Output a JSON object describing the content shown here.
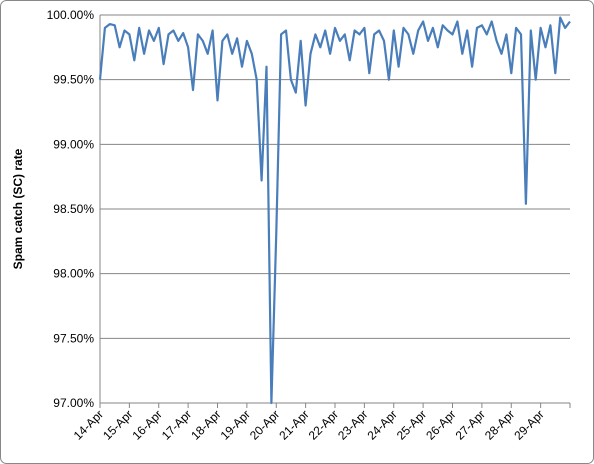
{
  "chart_data": {
    "type": "line",
    "y_label": "Spam catch (SC) rate",
    "categories": [
      "14-Apr",
      null,
      null,
      null,
      null,
      null,
      "15-Apr",
      null,
      null,
      null,
      null,
      null,
      "16-Apr",
      null,
      null,
      null,
      null,
      null,
      "17-Apr",
      null,
      null,
      null,
      null,
      null,
      "18-Apr",
      null,
      null,
      null,
      null,
      null,
      "19-Apr",
      null,
      null,
      null,
      null,
      null,
      "20-Apr",
      null,
      null,
      null,
      null,
      null,
      "21-Apr",
      null,
      null,
      null,
      null,
      null,
      "22-Apr",
      null,
      null,
      null,
      null,
      null,
      "23-Apr",
      null,
      null,
      null,
      null,
      null,
      "24-Apr",
      null,
      null,
      null,
      null,
      null,
      "25-Apr",
      null,
      null,
      null,
      null,
      null,
      "26-Apr",
      null,
      null,
      null,
      null,
      null,
      "27-Apr",
      null,
      null,
      null,
      null,
      null,
      "28-Apr",
      null,
      null,
      null,
      null,
      null,
      "29-Apr",
      null,
      null,
      null,
      null,
      null,
      null
    ],
    "series": [
      {
        "color": "#4a7ebb",
        "values": [
          99.5,
          99.9,
          99.93,
          99.92,
          99.75,
          99.88,
          99.85,
          99.65,
          99.9,
          99.7,
          99.88,
          99.8,
          99.9,
          99.62,
          99.85,
          99.88,
          99.8,
          99.86,
          99.75,
          99.42,
          99.85,
          99.8,
          99.7,
          99.88,
          99.34,
          99.8,
          99.85,
          99.7,
          99.82,
          99.6,
          99.8,
          99.7,
          99.5,
          98.72,
          99.6,
          97.0,
          98.32,
          99.85,
          99.88,
          99.5,
          99.4,
          99.8,
          99.3,
          99.7,
          99.85,
          99.75,
          99.88,
          99.7,
          99.9,
          99.8,
          99.85,
          99.65,
          99.88,
          99.85,
          99.9,
          99.55,
          99.85,
          99.88,
          99.8,
          99.5,
          99.88,
          99.6,
          99.9,
          99.85,
          99.7,
          99.88,
          99.95,
          99.8,
          99.9,
          99.75,
          99.92,
          99.88,
          99.85,
          99.95,
          99.7,
          99.88,
          99.6,
          99.9,
          99.92,
          99.85,
          99.95,
          99.8,
          99.7,
          99.85,
          99.55,
          99.9,
          99.85,
          98.54,
          99.88,
          99.5,
          99.9,
          99.75,
          99.92,
          99.55,
          99.98,
          99.9,
          99.95
        ]
      }
    ],
    "ylim": [
      97,
      100
    ],
    "yticks": [
      {
        "value": 97,
        "label": "97.00%"
      },
      {
        "value": 97.5,
        "label": "97.50%"
      },
      {
        "value": 98,
        "label": "98.00%"
      },
      {
        "value": 98.5,
        "label": "98.50%"
      },
      {
        "value": 99,
        "label": "99.00%"
      },
      {
        "value": 99.5,
        "label": "99.50%"
      },
      {
        "value": 100,
        "label": "100.00%"
      }
    ],
    "grid": true
  }
}
